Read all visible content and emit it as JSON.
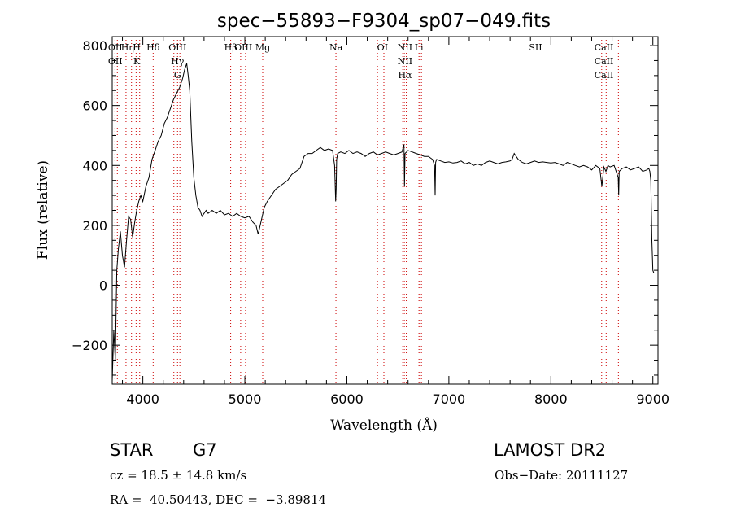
{
  "chart_data": {
    "type": "line",
    "title": "spec−55893−F9304_sp07−049.fits",
    "xlabel": "Wavelength (Å)",
    "ylabel": "Flux (relative)",
    "xlim": [
      3700,
      9050
    ],
    "ylim": [
      -330,
      830
    ],
    "x_ticks": [
      4000,
      5000,
      6000,
      7000,
      8000,
      9000
    ],
    "x_tick_labels": [
      "4000",
      "5000",
      "6000",
      "7000",
      "8000",
      "9000"
    ],
    "y_ticks": [
      -200,
      0,
      200,
      400,
      600,
      800
    ],
    "y_tick_labels": [
      "−200",
      "0",
      "200",
      "400",
      "600",
      "800"
    ],
    "grid": false,
    "series": [
      {
        "color": "#000000",
        "x": [
          3700,
          3715,
          3730,
          3745,
          3760,
          3780,
          3800,
          3820,
          3840,
          3860,
          3880,
          3900,
          3920,
          3940,
          3960,
          3980,
          4000,
          4030,
          4060,
          4090,
          4120,
          4150,
          4180,
          4210,
          4240,
          4270,
          4300,
          4330,
          4360,
          4390,
          4410,
          4430,
          4445,
          4460,
          4480,
          4500,
          4520,
          4540,
          4560,
          4580,
          4600,
          4620,
          4640,
          4680,
          4720,
          4760,
          4800,
          4840,
          4880,
          4920,
          4960,
          5000,
          5040,
          5080,
          5110,
          5130,
          5150,
          5170,
          5190,
          5220,
          5260,
          5300,
          5340,
          5380,
          5420,
          5460,
          5500,
          5540,
          5580,
          5620,
          5660,
          5700,
          5740,
          5780,
          5820,
          5860,
          5880,
          5890,
          5895,
          5900,
          5910,
          5940,
          5980,
          6020,
          6060,
          6100,
          6140,
          6180,
          6220,
          6260,
          6300,
          6340,
          6380,
          6420,
          6460,
          6500,
          6540,
          6560,
          6565,
          6570,
          6600,
          6640,
          6680,
          6720,
          6760,
          6800,
          6840,
          6860,
          6865,
          6870,
          6880,
          6920,
          6960,
          7000,
          7040,
          7080,
          7120,
          7160,
          7200,
          7240,
          7280,
          7320,
          7360,
          7400,
          7440,
          7480,
          7520,
          7560,
          7600,
          7620,
          7640,
          7680,
          7720,
          7760,
          7800,
          7840,
          7880,
          7920,
          7960,
          8000,
          8040,
          8080,
          8120,
          8160,
          8200,
          8240,
          8280,
          8320,
          8360,
          8400,
          8440,
          8480,
          8500,
          8520,
          8540,
          8560,
          8580,
          8620,
          8660,
          8665,
          8670,
          8700,
          8740,
          8780,
          8820,
          8860,
          8900,
          8940,
          8960,
          8970,
          8980,
          8990,
          9000,
          9010
        ],
        "y": [
          -320,
          -150,
          -250,
          50,
          120,
          180,
          100,
          60,
          150,
          230,
          220,
          160,
          210,
          250,
          280,
          300,
          280,
          330,
          360,
          420,
          450,
          480,
          500,
          540,
          560,
          590,
          620,
          640,
          660,
          690,
          720,
          740,
          700,
          650,
          480,
          360,
          300,
          260,
          250,
          230,
          240,
          250,
          240,
          250,
          240,
          250,
          235,
          240,
          230,
          240,
          230,
          225,
          230,
          210,
          200,
          170,
          200,
          230,
          260,
          280,
          300,
          320,
          330,
          340,
          350,
          370,
          380,
          390,
          430,
          440,
          440,
          450,
          460,
          450,
          455,
          450,
          400,
          280,
          320,
          420,
          440,
          445,
          440,
          450,
          440,
          445,
          440,
          430,
          440,
          445,
          435,
          440,
          445,
          440,
          435,
          440,
          445,
          470,
          330,
          440,
          450,
          445,
          440,
          435,
          430,
          430,
          420,
          400,
          300,
          410,
          420,
          415,
          410,
          412,
          408,
          410,
          415,
          405,
          410,
          400,
          405,
          400,
          410,
          415,
          410,
          405,
          410,
          412,
          415,
          420,
          440,
          420,
          410,
          405,
          410,
          415,
          410,
          412,
          410,
          408,
          410,
          405,
          400,
          410,
          405,
          400,
          395,
          400,
          395,
          385,
          400,
          390,
          330,
          395,
          380,
          400,
          395,
          400,
          360,
          300,
          380,
          390,
          395,
          385,
          390,
          395,
          380,
          385,
          390,
          380,
          350,
          150,
          50,
          40
        ]
      }
    ],
    "line_labels": [
      {
        "x": 3730,
        "labels": [
          "OII",
          "OII"
        ]
      },
      {
        "x": 3850,
        "labels": [
          "Hη"
        ]
      },
      {
        "x": 3940,
        "labels": [
          "H",
          "K"
        ]
      },
      {
        "x": 4101,
        "labels": [
          "Hδ"
        ]
      },
      {
        "x": 4340,
        "labels": [
          "OIII",
          "Hγ",
          "G"
        ]
      },
      {
        "x": 4861,
        "labels": [
          "Hβ"
        ]
      },
      {
        "x": 4985,
        "labels": [
          "OIII"
        ]
      },
      {
        "x": 5175,
        "labels": [
          "Mg"
        ]
      },
      {
        "x": 5893,
        "labels": [
          "Na"
        ]
      },
      {
        "x": 6350,
        "labels": [
          "OI"
        ]
      },
      {
        "x": 6570,
        "labels": [
          "NII",
          "NII",
          "Hα"
        ]
      },
      {
        "x": 6707,
        "labels": [
          "Li"
        ]
      },
      {
        "x": 7850,
        "labels": [
          "SII"
        ]
      },
      {
        "x": 8520,
        "labels": [
          "CaII",
          "CaII",
          "CaII"
        ]
      }
    ],
    "line_markers_x": [
      3727,
      3750,
      3835,
      3889,
      3934,
      3969,
      4101,
      4304,
      4340,
      4363,
      4861,
      4959,
      5007,
      5175,
      5893,
      6300,
      6363,
      6548,
      6563,
      6583,
      6707,
      6717,
      6731,
      8498,
      8542,
      8662
    ]
  },
  "info": {
    "obj_class": "STAR",
    "subclass": "G7",
    "survey": "LAMOST DR2",
    "cz": "cz = 18.5 ± 14.8 km/s",
    "obs_date": "Obs−Date: 20111127",
    "coords": "RA =  40.50443, DEC =  −3.89814"
  }
}
